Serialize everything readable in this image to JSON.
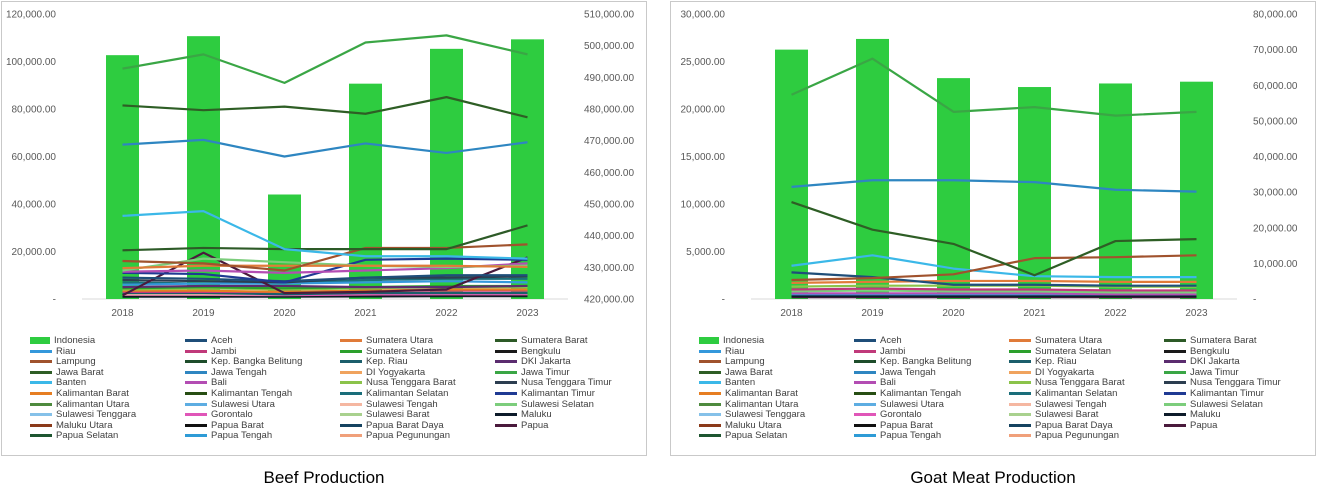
{
  "chart_data": [
    {
      "type": "bar",
      "title": "Beef Production",
      "categories": [
        "2018",
        "2019",
        "2020",
        "2021",
        "2022",
        "2023"
      ],
      "left_axis": {
        "min": 0,
        "max": 120000,
        "ticks": [
          "-",
          "20,000.00",
          "40,000.00",
          "60,000.00",
          "80,000.00",
          "100,000.00",
          "120,000.00"
        ]
      },
      "right_axis": {
        "min": 420000,
        "max": 510000,
        "ticks": [
          "420,000.00",
          "430,000.00",
          "440,000.00",
          "450,000.00",
          "460,000.00",
          "470,000.00",
          "480,000.00",
          "490,000.00",
          "500,000.00",
          "510,000.00"
        ]
      },
      "bar_series": {
        "name": "Indonesia",
        "axis": "right",
        "color": "#2ecc40",
        "values": [
          497000,
          503000,
          453000,
          488000,
          499000,
          502000
        ]
      },
      "line_series": [
        {
          "name": "Jawa Timur",
          "color": "#3aa645",
          "values": [
            97000,
            103000,
            91000,
            108000,
            111000,
            103000
          ]
        },
        {
          "name": "Jawa Barat",
          "color": "#2e5e25",
          "values": [
            81500,
            79500,
            81000,
            78000,
            85000,
            76500
          ]
        },
        {
          "name": "Jawa Tengah",
          "color": "#2e86c1",
          "values": [
            65000,
            67000,
            60000,
            65500,
            61500,
            66000
          ]
        },
        {
          "name": "Banten",
          "color": "#3bb8e8",
          "values": [
            35000,
            37000,
            21000,
            18000,
            18000,
            17000
          ]
        },
        {
          "name": "Sumatera Barat",
          "color": "#2d5a27",
          "values": [
            20500,
            21500,
            21000,
            21000,
            21000,
            31000
          ]
        },
        {
          "name": "Lampung",
          "color": "#a0522d",
          "values": [
            16000,
            15000,
            12000,
            21500,
            21500,
            23000
          ]
        },
        {
          "name": "Sumatera Utara",
          "color": "#e07b39",
          "values": [
            13000,
            14000,
            14000,
            14000,
            14000,
            13500
          ]
        },
        {
          "name": "Sulawesi Selatan",
          "color": "#7ccd7c",
          "values": [
            12000,
            17000,
            15500,
            14000,
            13500,
            14000
          ]
        },
        {
          "name": "Bali",
          "color": "#b34db3",
          "values": [
            11500,
            12000,
            11000,
            12000,
            13000,
            15000
          ]
        },
        {
          "name": "Kalimantan Timur",
          "color": "#1f3a93",
          "values": [
            11000,
            10500,
            7000,
            16500,
            17000,
            16500
          ]
        },
        {
          "name": "Aceh",
          "color": "#1f4e79",
          "values": [
            9000,
            8500,
            7500,
            9000,
            10000,
            10000
          ]
        },
        {
          "name": "Papua",
          "color": "#4a1a3c",
          "values": [
            1500,
            19500,
            2500,
            3000,
            4000,
            17500
          ]
        },
        {
          "name": "Nusa Tenggara Timur",
          "color": "#2c3e50",
          "values": [
            8000,
            7500,
            7000,
            9000,
            9000,
            9500
          ]
        },
        {
          "name": "Riau",
          "color": "#3498db",
          "values": [
            6000,
            6500,
            6500,
            7000,
            7500,
            7000
          ]
        },
        {
          "name": "Kalimantan Selatan",
          "color": "#1a6e7a",
          "values": [
            7000,
            6500,
            6500,
            8000,
            8500,
            8500
          ]
        },
        {
          "name": "DKI Jakarta",
          "color": "#5b2c6f",
          "values": [
            5000,
            5500,
            5500,
            5000,
            5000,
            5500
          ]
        },
        {
          "name": "Sumatera Selatan",
          "color": "#2ca02c",
          "values": [
            4500,
            5000,
            4500,
            5000,
            5500,
            5500
          ]
        },
        {
          "name": "Nusa Tenggara Barat",
          "color": "#8bc34a",
          "values": [
            4000,
            4500,
            4000,
            4500,
            5000,
            5000
          ]
        },
        {
          "name": "Kalimantan Barat",
          "color": "#e67e22",
          "values": [
            3500,
            3500,
            3000,
            3500,
            4000,
            4000
          ]
        },
        {
          "name": "Jambi",
          "color": "#c0397a",
          "values": [
            3000,
            3000,
            3000,
            3500,
            3500,
            3500
          ]
        },
        {
          "name": "Kep. Riau",
          "color": "#1b5e6b",
          "values": [
            2500,
            2500,
            2000,
            2500,
            2500,
            2500
          ]
        },
        {
          "name": "Sulawesi Tengah",
          "color": "#f5b7a1",
          "values": [
            2000,
            2000,
            2000,
            2500,
            2500,
            2500
          ]
        },
        {
          "name": "Gorontalo",
          "color": "#e056b8",
          "values": [
            1800,
            1800,
            1600,
            1900,
            2000,
            2000
          ]
        },
        {
          "name": "Bengkulu",
          "color": "#1a1a1a",
          "values": [
            1500,
            1500,
            1500,
            1600,
            1600,
            1600
          ]
        },
        {
          "name": "Maluku",
          "color": "#0d1b2a",
          "values": [
            1000,
            1000,
            1000,
            1100,
            1200,
            1200
          ]
        }
      ],
      "legend": [
        "Indonesia",
        "Aceh",
        "Sumatera Utara",
        "Sumatera Barat",
        "Riau",
        "Jambi",
        "Sumatera Selatan",
        "Bengkulu",
        "Lampung",
        "Kep. Bangka Belitung",
        "Kep. Riau",
        "DKI Jakarta",
        "Jawa Barat",
        "Jawa Tengah",
        "DI Yogyakarta",
        "Jawa Timur",
        "Banten",
        "Bali",
        "Nusa Tenggara Barat",
        "Nusa Tenggara Timur",
        "Kalimantan Barat",
        "Kalimantan Tengah",
        "Kalimantan Selatan",
        "Kalimantan Timur",
        "Kalimantan Utara",
        "Sulawesi Utara",
        "Sulawesi Tengah",
        "Sulawesi Selatan",
        "Sulawesi Tenggara",
        "Gorontalo",
        "Sulawesi Barat",
        "Maluku",
        "Maluku Utara",
        "Papua Barat",
        "Papua Barat Daya",
        "Papua",
        "Papua Selatan",
        "Papua Tengah",
        "Papua Pegunungan"
      ]
    },
    {
      "type": "bar",
      "title": "Goat Meat Production",
      "categories": [
        "2018",
        "2019",
        "2020",
        "2021",
        "2022",
        "2023"
      ],
      "left_axis": {
        "min": 0,
        "max": 30000,
        "ticks": [
          "-",
          "5,000.00",
          "10,000.00",
          "15,000.00",
          "20,000.00",
          "25,000.00",
          "30,000.00"
        ]
      },
      "right_axis": {
        "min": 0,
        "max": 80000,
        "ticks": [
          "-",
          "10,000.00",
          "20,000.00",
          "30,000.00",
          "40,000.00",
          "50,000.00",
          "60,000.00",
          "70,000.00",
          "80,000.00"
        ]
      },
      "bar_series": {
        "name": "Indonesia",
        "axis": "right",
        "color": "#2ecc40",
        "values": [
          70000,
          73000,
          62000,
          59500,
          60500,
          61000
        ]
      },
      "line_series": [
        {
          "name": "Jawa Timur",
          "color": "#3aa645",
          "values": [
            21500,
            25300,
            19700,
            20200,
            19300,
            19700
          ]
        },
        {
          "name": "Jawa Tengah",
          "color": "#2e86c1",
          "values": [
            11800,
            12500,
            12500,
            12300,
            11500,
            11300
          ]
        },
        {
          "name": "Jawa Barat",
          "color": "#2e5e25",
          "values": [
            10200,
            7300,
            5800,
            2500,
            6100,
            6300
          ]
        },
        {
          "name": "Lampung",
          "color": "#a0522d",
          "values": [
            2000,
            2200,
            2600,
            4300,
            4400,
            4600
          ]
        },
        {
          "name": "Banten",
          "color": "#3bb8e8",
          "values": [
            3500,
            4600,
            3200,
            2400,
            2300,
            2300
          ]
        },
        {
          "name": "Aceh",
          "color": "#1f4e79",
          "values": [
            2800,
            2300,
            1500,
            1500,
            1400,
            1400
          ]
        },
        {
          "name": "Sumatera Utara",
          "color": "#e07b39",
          "values": [
            1700,
            1800,
            1900,
            1900,
            1800,
            1800
          ]
        },
        {
          "name": "Nusa Tenggara Barat",
          "color": "#8bc34a",
          "values": [
            1300,
            1400,
            1400,
            1400,
            1300,
            1300
          ]
        },
        {
          "name": "Jambi",
          "color": "#c0397a",
          "values": [
            1000,
            1100,
            1000,
            1000,
            900,
            900
          ]
        },
        {
          "name": "Sulawesi Selatan",
          "color": "#7ccd7c",
          "values": [
            800,
            900,
            800,
            800,
            700,
            700
          ]
        },
        {
          "name": "Bali",
          "color": "#b34db3",
          "values": [
            600,
            600,
            600,
            600,
            500,
            500
          ]
        },
        {
          "name": "Riau",
          "color": "#3498db",
          "values": [
            500,
            500,
            500,
            500,
            500,
            500
          ]
        },
        {
          "name": "Maluku",
          "color": "#0d1b2a",
          "values": [
            300,
            300,
            300,
            300,
            300,
            300
          ]
        },
        {
          "name": "Papua",
          "color": "#4a1a3c",
          "values": [
            200,
            200,
            200,
            200,
            200,
            200
          ]
        }
      ],
      "legend": [
        "Indonesia",
        "Aceh",
        "Sumatera Utara",
        "Sumatera Barat",
        "Riau",
        "Jambi",
        "Sumatera Selatan",
        "Bengkulu",
        "Lampung",
        "Kep. Bangka Belitung",
        "Kep. Riau",
        "DKI Jakarta",
        "Jawa Barat",
        "Jawa Tengah",
        "DI Yogyakarta",
        "Jawa Timur",
        "Banten",
        "Bali",
        "Nusa Tenggara Barat",
        "Nusa Tenggara Timur",
        "Kalimantan Barat",
        "Kalimantan Tengah",
        "Kalimantan Selatan",
        "Kalimantan Timur",
        "Kalimantan Utara",
        "Sulawesi Utara",
        "Sulawesi Tengah",
        "Sulawesi Selatan",
        "Sulawesi Tenggara",
        "Gorontalo",
        "Sulawesi Barat",
        "Maluku",
        "Maluku Utara",
        "Papua Barat",
        "Papua Barat Daya",
        "Papua",
        "Papua Selatan",
        "Papua Tengah",
        "Papua Pegunungan"
      ]
    }
  ],
  "legend_colors": {
    "Indonesia": "#2ecc40",
    "Aceh": "#1f4e79",
    "Sumatera Utara": "#e07b39",
    "Sumatera Barat": "#2d5a27",
    "Riau": "#3498db",
    "Jambi": "#c0397a",
    "Sumatera Selatan": "#2ca02c",
    "Bengkulu": "#1a1a1a",
    "Lampung": "#a0522d",
    "Kep. Bangka Belitung": "#1e4d2b",
    "Kep. Riau": "#1b5e6b",
    "DKI Jakarta": "#5b2c6f",
    "Jawa Barat": "#2e5e25",
    "Jawa Tengah": "#2e86c1",
    "DI Yogyakarta": "#f0a35e",
    "Jawa Timur": "#3aa645",
    "Banten": "#3bb8e8",
    "Bali": "#b34db3",
    "Nusa Tenggara Barat": "#8bc34a",
    "Nusa Tenggara Timur": "#2c3e50",
    "Kalimantan Barat": "#e67e22",
    "Kalimantan Tengah": "#274e13",
    "Kalimantan Selatan": "#1a6e7a",
    "Kalimantan Timur": "#1f3a93",
    "Kalimantan Utara": "#4e8a3e",
    "Sulawesi Utara": "#5dade2",
    "Sulawesi Tengah": "#f5b7a1",
    "Sulawesi Selatan": "#7ccd7c",
    "Sulawesi Tenggara": "#85c1e9",
    "Gorontalo": "#e056b8",
    "Sulawesi Barat": "#a9d18e",
    "Maluku": "#0d1b2a",
    "Maluku Utara": "#8b3a1a",
    "Papua Barat": "#111111",
    "Papua Barat Daya": "#154360",
    "Papua": "#4a1a3c",
    "Papua Selatan": "#1e5631",
    "Papua Tengah": "#2e9bd6",
    "Papua Pegunungan": "#f0a07a"
  }
}
